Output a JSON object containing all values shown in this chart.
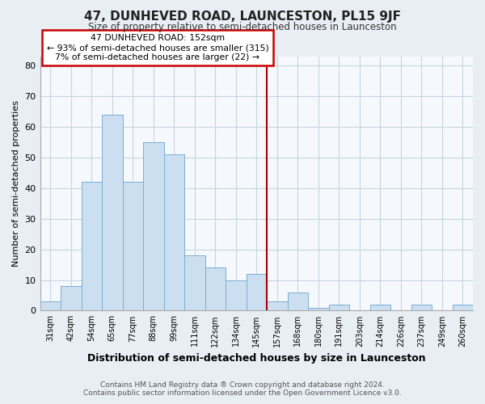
{
  "title": "47, DUNHEVED ROAD, LAUNCESTON, PL15 9JF",
  "subtitle": "Size of property relative to semi-detached houses in Launceston",
  "xlabel": "Distribution of semi-detached houses by size in Launceston",
  "ylabel": "Number of semi-detached properties",
  "footer_line1": "Contains HM Land Registry data ® Crown copyright and database right 2024.",
  "footer_line2": "Contains public sector information licensed under the Open Government Licence v3.0.",
  "bar_labels": [
    "31sqm",
    "42sqm",
    "54sqm",
    "65sqm",
    "77sqm",
    "88sqm",
    "99sqm",
    "111sqm",
    "122sqm",
    "134sqm",
    "145sqm",
    "157sqm",
    "168sqm",
    "180sqm",
    "191sqm",
    "203sqm",
    "214sqm",
    "226sqm",
    "237sqm",
    "249sqm",
    "260sqm"
  ],
  "bar_values": [
    3,
    8,
    42,
    64,
    42,
    55,
    51,
    18,
    14,
    10,
    12,
    3,
    6,
    1,
    2,
    0,
    2,
    0,
    2,
    0,
    2
  ],
  "bar_color": "#ccdff0",
  "bar_edge_color": "#7aafd4",
  "annotation_text": "47 DUNHEVED ROAD: 152sqm",
  "annotation_line1": "← 93% of semi-detached houses are smaller (315)",
  "annotation_line2": "7% of semi-detached houses are larger (22) →",
  "annotation_box_color": "#ffffff",
  "annotation_box_edge_color": "#cc0000",
  "vline_color": "#aa0000",
  "vline_x_index": 10,
  "ylim": [
    0,
    83
  ],
  "yticks": [
    0,
    10,
    20,
    30,
    40,
    50,
    60,
    70,
    80
  ],
  "bg_color": "#e8eef4",
  "plot_bg_color": "#f5f8fc",
  "grid_color": "#c8d4e0"
}
